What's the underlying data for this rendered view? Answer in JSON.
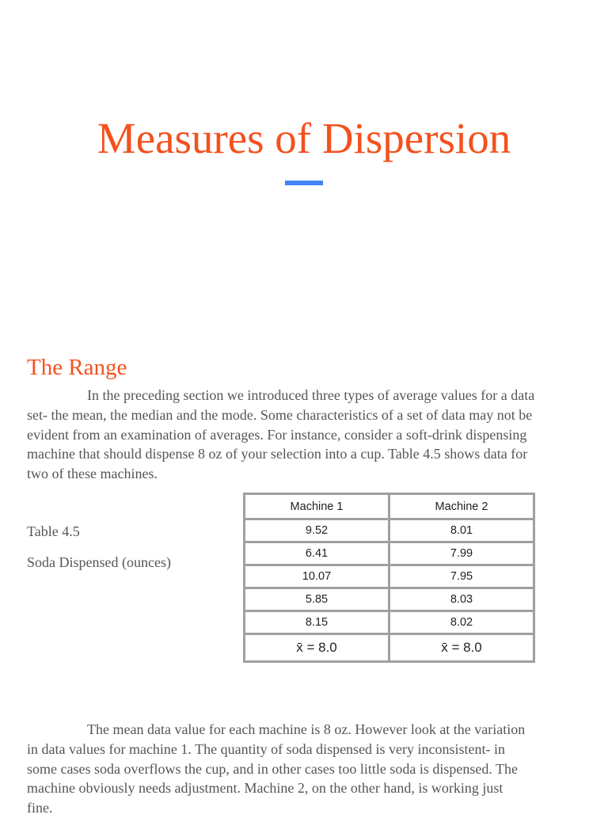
{
  "title": "Measures of Dispersion",
  "accent_color": "#4285f4",
  "heading_color": "#f4511e",
  "section": {
    "heading": "The Range",
    "paragraph1": [
      "In the preceding section we introduced three types of average values for a data",
      "set- the mean, the median and the mode. Some characteristics of a set of data may not be",
      "evident from an examination of averages. For instance, consider a soft-drink dispensing",
      "machine that should dispense 8 oz of your selection into a cup. Table 4.5 shows data for",
      "two of these machines."
    ],
    "table_label": "Table 4.5",
    "table_caption": "Soda Dispensed (ounces)",
    "table": {
      "headers": [
        "Machine 1",
        "Machine 2"
      ],
      "rows": [
        [
          "9.52",
          "8.01"
        ],
        [
          "6.41",
          "7.99"
        ],
        [
          "10.07",
          "7.95"
        ],
        [
          "5.85",
          "8.03"
        ],
        [
          "8.15",
          "8.02"
        ]
      ],
      "means": [
        "x̄ = 8.0",
        "x̄ = 8.0"
      ]
    },
    "paragraph2": [
      "The mean data value for each machine is 8 oz. However look at the variation",
      "in data values for machine 1. The quantity of soda dispensed is very inconsistent- in",
      "some cases soda overflows the cup, and in other cases too little soda is dispensed. The",
      "machine obviously needs adjustment. Machine 2, on the other hand, is working just",
      "fine."
    ]
  }
}
